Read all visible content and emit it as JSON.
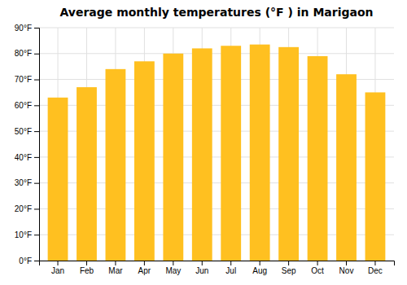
{
  "chart_data": {
    "type": "bar",
    "title": "Average monthly temperatures (°F ) in Marigaon",
    "categories": [
      "Jan",
      "Feb",
      "Mar",
      "Apr",
      "May",
      "Jun",
      "Jul",
      "Aug",
      "Sep",
      "Oct",
      "Nov",
      "Dec"
    ],
    "values": [
      63,
      67,
      74,
      77,
      80,
      82,
      83,
      83.5,
      82.5,
      79,
      72,
      65
    ],
    "color": "#FFC020",
    "ylim": [
      0,
      90
    ],
    "yticks": [
      {
        "value": 0,
        "label": "0°F"
      },
      {
        "value": 10,
        "label": "10°F"
      },
      {
        "value": 20,
        "label": "20°F"
      },
      {
        "value": 30,
        "label": "30°F"
      },
      {
        "value": 40,
        "label": "40°F"
      },
      {
        "value": 50,
        "label": "50°F"
      },
      {
        "value": 60,
        "label": "60°F"
      },
      {
        "value": 70,
        "label": "70°F"
      },
      {
        "value": 80,
        "label": "80°F"
      },
      {
        "value": 90,
        "label": "90°F"
      }
    ],
    "grid": true
  }
}
